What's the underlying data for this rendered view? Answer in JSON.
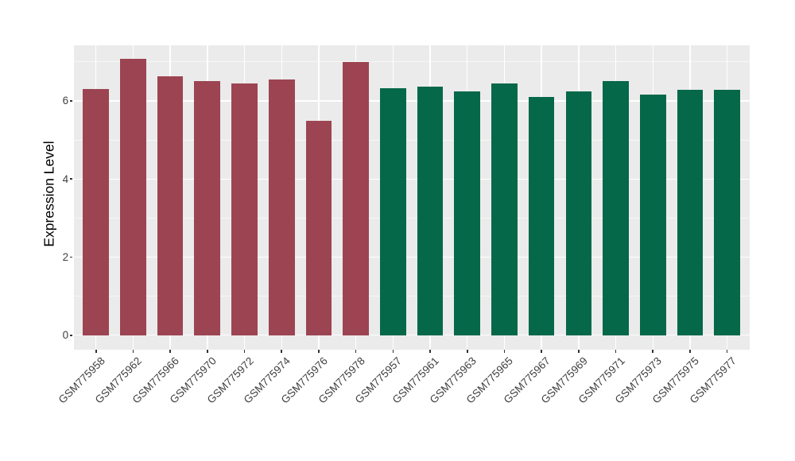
{
  "chart_data": {
    "type": "bar",
    "title": "",
    "xlabel": "",
    "ylabel": "Expression Level",
    "ylim": [
      0,
      7.43
    ],
    "ylim_display": [
      -0.37,
      7.43
    ],
    "yticks": [
      0,
      2,
      4,
      6
    ],
    "yticks_minor": [
      1,
      3,
      5,
      7
    ],
    "grid": "on",
    "legend": "none",
    "panel_background": "#EBEBEB",
    "gridline_color": "#FFFFFF",
    "axis_text_color": "#404040",
    "figure_background": "#FFFFFF",
    "categories": [
      "GSM775958",
      "GSM775962",
      "GSM775966",
      "GSM775970",
      "GSM775972",
      "GSM775974",
      "GSM775976",
      "GSM775978",
      "GSM775957",
      "GSM775961",
      "GSM775963",
      "GSM775965",
      "GSM775967",
      "GSM775969",
      "GSM775971",
      "GSM775973",
      "GSM775975",
      "GSM775977"
    ],
    "values": [
      6.31,
      7.08,
      6.62,
      6.51,
      6.45,
      6.55,
      5.5,
      7.0,
      6.32,
      6.36,
      6.25,
      6.45,
      6.11,
      6.25,
      6.5,
      6.17,
      6.28,
      6.28
    ],
    "groups": [
      "group1",
      "group1",
      "group1",
      "group1",
      "group1",
      "group1",
      "group1",
      "group1",
      "group2",
      "group2",
      "group2",
      "group2",
      "group2",
      "group2",
      "group2",
      "group2",
      "group2",
      "group2"
    ],
    "group_colors": {
      "group1": "#9C4452",
      "group2": "#056849"
    },
    "bar_width_ratio": 0.7
  }
}
